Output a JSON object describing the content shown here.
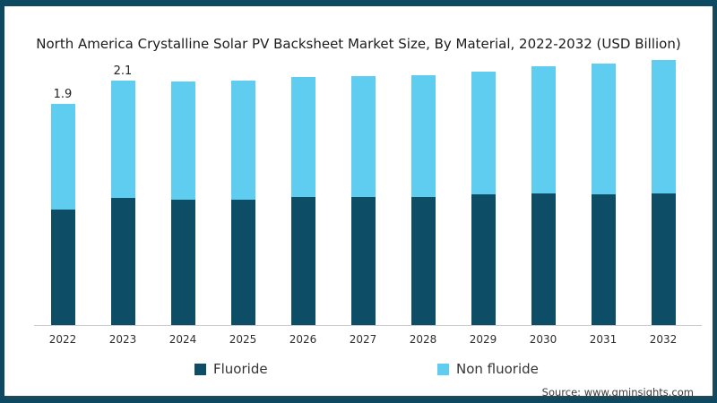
{
  "title": "North America Crystalline Solar PV Backsheet Market Size, By Material, 2022-2032 (USD Billion)",
  "source": "Source: www.gminsights.com",
  "legend": [
    {
      "label": "Fluoride",
      "color": "#0D4D66"
    },
    {
      "label": "Non fluoride",
      "color": "#5FCDF0"
    }
  ],
  "chart_data": {
    "type": "bar",
    "stacked": true,
    "title": "North America Crystalline Solar PV Backsheet Market Size, By Material, 2022-2032 (USD Billion)",
    "units": "USD Billion",
    "categories": [
      "2022",
      "2023",
      "2024",
      "2025",
      "2026",
      "2027",
      "2028",
      "2029",
      "2030",
      "2031",
      "2032"
    ],
    "series": [
      {
        "name": "Fluoride",
        "color": "#0D4D66",
        "values": [
          0.99,
          1.09,
          1.08,
          1.08,
          1.1,
          1.1,
          1.1,
          1.12,
          1.13,
          1.12,
          1.13
        ]
      },
      {
        "name": "Non fluoride",
        "color": "#5FCDF0",
        "values": [
          0.91,
          1.01,
          1.01,
          1.02,
          1.03,
          1.04,
          1.05,
          1.06,
          1.09,
          1.13,
          1.15
        ]
      }
    ],
    "totals": [
      1.9,
      2.1,
      2.09,
      2.1,
      2.13,
      2.14,
      2.15,
      2.18,
      2.22,
      2.25,
      2.28
    ],
    "total_labels": [
      "1.9",
      "2.1",
      "",
      "",
      "",
      "",
      "",
      "",
      "",
      "",
      ""
    ],
    "xlabel": "",
    "ylabel": "",
    "ylim": [
      0,
      2.4
    ],
    "grid": false,
    "y_axis_shown": false,
    "legend_position": "bottom",
    "axis_color": "#cccccc"
  },
  "colors": {
    "frame": "#0D4A62",
    "card_background": "#ffffff",
    "title_text": "#1b1b1b"
  }
}
